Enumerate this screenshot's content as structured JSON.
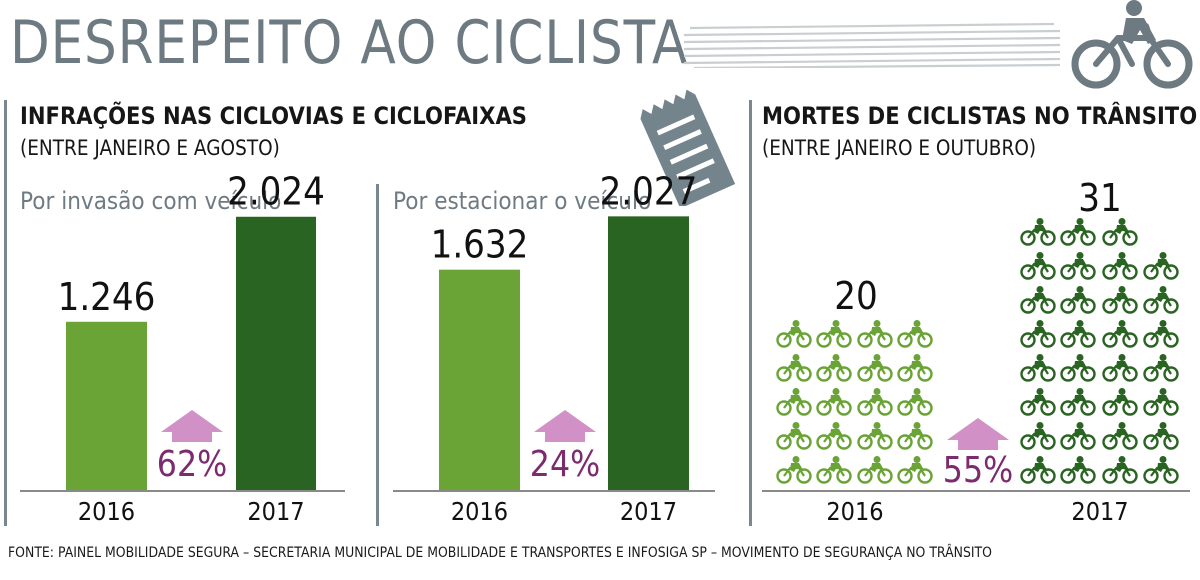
{
  "header": {
    "title": "DESREPEITO AO CICLISTA",
    "bike_icon": "cyclist-icon",
    "receipt_icon": "ticket-icon"
  },
  "colors": {
    "bar_2016": "#6aa336",
    "bar_2017": "#2a6422",
    "arrow": "#d191c6",
    "percent": "#7c2b6e",
    "divider": "#79878e",
    "cyclist_2016": "#6aa336",
    "cyclist_2017": "#2a6422"
  },
  "infractions": {
    "heading": "INFRAÇÕES NAS CICLOVIAS E CICLOFAIXAS",
    "period": "(ENTRE JANEIRO E AGOSTO)"
  },
  "deaths": {
    "heading": "MORTES DE CICLISTAS NO TRÂNSITO",
    "period": "(ENTRE JANEIRO E OUTUBRO)"
  },
  "chart_data": [
    {
      "type": "bar",
      "title": "Por invasão com veículo",
      "categories": [
        "2016",
        "2017"
      ],
      "values": [
        1246,
        2024
      ],
      "value_labels": [
        "1.246",
        "2.024"
      ],
      "change_label": "62%",
      "ylim": [
        0,
        2400
      ]
    },
    {
      "type": "bar",
      "title": "Por estacionar o veículo",
      "categories": [
        "2016",
        "2017"
      ],
      "values": [
        1632,
        2027
      ],
      "value_labels": [
        "1.632",
        "2.027"
      ],
      "change_label": "24%",
      "ylim": [
        0,
        2400
      ]
    },
    {
      "type": "pictogram",
      "title": "",
      "categories": [
        "2016",
        "2017"
      ],
      "values": [
        20,
        31
      ],
      "value_labels": [
        "20",
        "31"
      ],
      "change_label": "55%",
      "icon": "cyclist-icon"
    }
  ],
  "source": "FONTE: PAINEL MOBILIDADE SEGURA – SECRETARIA MUNICIPAL DE MOBILIDADE E TRANSPORTES E INFOSIGA SP – MOVIMENTO DE SEGURANÇA NO TRÂNSITO"
}
